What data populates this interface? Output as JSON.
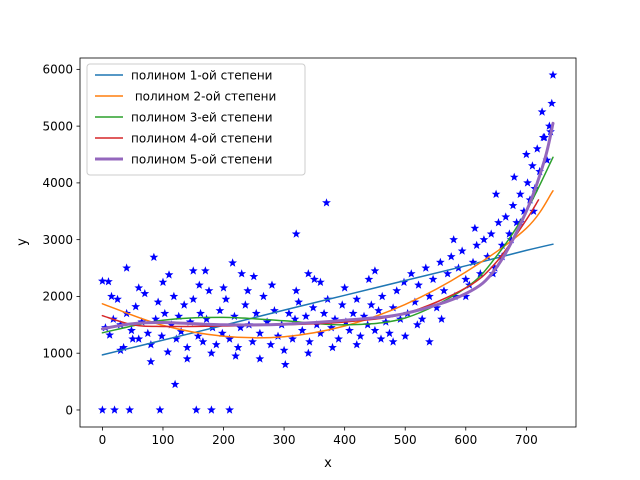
{
  "chart_data": {
    "type": "scatter",
    "xlabel": "x",
    "ylabel": "y",
    "xlim": [
      -37,
      782
    ],
    "ylim": [
      -300,
      6200
    ],
    "xticks": [
      0,
      100,
      200,
      300,
      400,
      500,
      600,
      700
    ],
    "yticks": [
      0,
      1000,
      2000,
      3000,
      4000,
      5000,
      6000
    ],
    "grid": false,
    "legend_position": "top-left",
    "scatter_color": "#0000ff",
    "scatter_marker": "star",
    "scatter_points": [
      [
        0,
        0
      ],
      [
        20,
        0
      ],
      [
        45,
        0
      ],
      [
        95,
        0
      ],
      [
        155,
        0
      ],
      [
        180,
        0
      ],
      [
        210,
        0
      ],
      [
        0,
        2270
      ],
      [
        10,
        2260
      ],
      [
        40,
        2500
      ],
      [
        85,
        2690
      ],
      [
        110,
        2380
      ],
      [
        170,
        2450
      ],
      [
        215,
        2590
      ],
      [
        340,
        2400
      ],
      [
        370,
        3650
      ],
      [
        320,
        3100
      ],
      [
        230,
        2400
      ],
      [
        5,
        1450
      ],
      [
        12,
        1320
      ],
      [
        18,
        1600
      ],
      [
        25,
        1950
      ],
      [
        30,
        1500
      ],
      [
        35,
        1100
      ],
      [
        40,
        1700
      ],
      [
        48,
        1400
      ],
      [
        55,
        1820
      ],
      [
        60,
        1250
      ],
      [
        65,
        1550
      ],
      [
        70,
        2050
      ],
      [
        75,
        1350
      ],
      [
        80,
        1150
      ],
      [
        88,
        1600
      ],
      [
        92,
        1900
      ],
      [
        98,
        1300
      ],
      [
        103,
        1700
      ],
      [
        108,
        1020
      ],
      [
        114,
        1500
      ],
      [
        118,
        2000
      ],
      [
        122,
        1250
      ],
      [
        126,
        1650
      ],
      [
        130,
        1380
      ],
      [
        135,
        1850
      ],
      [
        140,
        1100
      ],
      [
        145,
        1550
      ],
      [
        150,
        1950
      ],
      [
        158,
        1300
      ],
      [
        162,
        1700
      ],
      [
        166,
        1200
      ],
      [
        172,
        1600
      ],
      [
        176,
        2100
      ],
      [
        182,
        1450
      ],
      [
        188,
        1150
      ],
      [
        194,
        1750
      ],
      [
        198,
        1350
      ],
      [
        204,
        1950
      ],
      [
        210,
        1250
      ],
      [
        218,
        1650
      ],
      [
        224,
        1100
      ],
      [
        228,
        1450
      ],
      [
        236,
        1850
      ],
      [
        242,
        1500
      ],
      [
        248,
        1200
      ],
      [
        254,
        1700
      ],
      [
        260,
        1350
      ],
      [
        266,
        2000
      ],
      [
        272,
        1550
      ],
      [
        278,
        1150
      ],
      [
        284,
        1750
      ],
      [
        290,
        1300
      ],
      [
        296,
        1500
      ],
      [
        302,
        800
      ],
      [
        308,
        1700
      ],
      [
        314,
        1250
      ],
      [
        318,
        1600
      ],
      [
        324,
        1900
      ],
      [
        330,
        1400
      ],
      [
        336,
        1650
      ],
      [
        342,
        1200
      ],
      [
        348,
        1800
      ],
      [
        354,
        1500
      ],
      [
        360,
        1350
      ],
      [
        366,
        1700
      ],
      [
        372,
        1950
      ],
      [
        378,
        1450
      ],
      [
        384,
        1600
      ],
      [
        390,
        1250
      ],
      [
        396,
        1850
      ],
      [
        402,
        1550
      ],
      [
        408,
        1400
      ],
      [
        414,
        1700
      ],
      [
        420,
        1950
      ],
      [
        426,
        1300
      ],
      [
        432,
        1650
      ],
      [
        438,
        1500
      ],
      [
        444,
        1850
      ],
      [
        450,
        1400
      ],
      [
        456,
        1750
      ],
      [
        462,
        2000
      ],
      [
        468,
        1550
      ],
      [
        474,
        1350
      ],
      [
        480,
        1800
      ],
      [
        486,
        2100
      ],
      [
        492,
        1600
      ],
      [
        498,
        2250
      ],
      [
        504,
        1700
      ],
      [
        510,
        2400
      ],
      [
        516,
        1900
      ],
      [
        522,
        2200
      ],
      [
        528,
        1600
      ],
      [
        534,
        2500
      ],
      [
        540,
        2000
      ],
      [
        546,
        2300
      ],
      [
        552,
        1800
      ],
      [
        558,
        2600
      ],
      [
        564,
        2100
      ],
      [
        570,
        2400
      ],
      [
        576,
        2700
      ],
      [
        582,
        2000
      ],
      [
        588,
        2500
      ],
      [
        594,
        2800
      ],
      [
        600,
        2300
      ],
      [
        606,
        2200
      ],
      [
        612,
        2600
      ],
      [
        618,
        2900
      ],
      [
        624,
        2400
      ],
      [
        630,
        3000
      ],
      [
        636,
        2700
      ],
      [
        642,
        3100
      ],
      [
        648,
        2500
      ],
      [
        654,
        3300
      ],
      [
        660,
        2900
      ],
      [
        666,
        3400
      ],
      [
        672,
        3100
      ],
      [
        678,
        3600
      ],
      [
        684,
        3300
      ],
      [
        690,
        3800
      ],
      [
        696,
        3500
      ],
      [
        702,
        4000
      ],
      [
        706,
        3700
      ],
      [
        710,
        4300
      ],
      [
        714,
        3900
      ],
      [
        718,
        4600
      ],
      [
        722,
        4200
      ],
      [
        726,
        5250
      ],
      [
        730,
        4800
      ],
      [
        734,
        4400
      ],
      [
        738,
        5000
      ],
      [
        742,
        5400
      ],
      [
        744,
        5900
      ],
      [
        700,
        4500
      ],
      [
        712,
        3500
      ],
      [
        690,
        3300
      ],
      [
        680,
        4100
      ],
      [
        728,
        4800
      ],
      [
        740,
        4900
      ],
      [
        675,
        3000
      ],
      [
        660,
        2700
      ],
      [
        650,
        3800
      ],
      [
        645,
        2400
      ],
      [
        615,
        3200
      ],
      [
        600,
        2000
      ],
      [
        580,
        3000
      ],
      [
        560,
        1600
      ],
      [
        540,
        1200
      ],
      [
        520,
        1500
      ],
      [
        500,
        1300
      ],
      [
        480,
        1200
      ],
      [
        460,
        1250
      ],
      [
        440,
        2300
      ],
      [
        420,
        1150
      ],
      [
        400,
        2150
      ],
      [
        380,
        1100
      ],
      [
        360,
        2250
      ],
      [
        340,
        1000
      ],
      [
        320,
        2100
      ],
      [
        300,
        1050
      ],
      [
        280,
        2200
      ],
      [
        260,
        900
      ],
      [
        240,
        2100
      ],
      [
        220,
        950
      ],
      [
        200,
        2150
      ],
      [
        180,
        1000
      ],
      [
        160,
        2200
      ],
      [
        140,
        900
      ],
      [
        120,
        450
      ],
      [
        100,
        2250
      ],
      [
        80,
        850
      ],
      [
        60,
        2150
      ],
      [
        30,
        1050
      ],
      [
        15,
        2000
      ],
      [
        50,
        1250
      ],
      [
        150,
        2450
      ],
      [
        250,
        2350
      ],
      [
        350,
        2300
      ],
      [
        450,
        2450
      ]
    ],
    "series": [
      {
        "name": "полином 1-ой степени",
        "color": "#1f77b4",
        "width": 1.5,
        "x": [
          0,
          100,
          200,
          300,
          400,
          500,
          600,
          700,
          744
        ],
        "y": [
          970,
          1230,
          1490,
          1760,
          2020,
          2280,
          2540,
          2810,
          2920
        ]
      },
      {
        "name": " полином 2-ой степени",
        "color": "#ff7f0e",
        "width": 1.5,
        "x": [
          0,
          100,
          200,
          300,
          400,
          500,
          600,
          700,
          744
        ],
        "y": [
          1870,
          1490,
          1300,
          1290,
          1480,
          1860,
          2430,
          3200,
          3860
        ]
      },
      {
        "name": "полином 3-ей степени",
        "color": "#2ca02c",
        "width": 1.5,
        "x": [
          0,
          100,
          200,
          300,
          400,
          500,
          600,
          650,
          700,
          744
        ],
        "y": [
          1360,
          1580,
          1630,
          1570,
          1500,
          1620,
          2150,
          2700,
          3500,
          4450
        ]
      },
      {
        "name": "полином 4-ой степени",
        "color": "#d62728",
        "width": 1.5,
        "x": [
          0,
          50,
          100,
          200,
          300,
          400,
          500,
          600,
          650,
          700,
          720
        ],
        "y": [
          1660,
          1500,
          1470,
          1480,
          1500,
          1550,
          1700,
          2150,
          2600,
          3350,
          3700
        ]
      },
      {
        "name": "полином 5-ой степени",
        "color": "#9467bd",
        "width": 3,
        "x": [
          0,
          50,
          100,
          200,
          300,
          400,
          500,
          600,
          650,
          700,
          730,
          744
        ],
        "y": [
          1430,
          1520,
          1540,
          1500,
          1510,
          1580,
          1700,
          2050,
          2500,
          3500,
          4400,
          5050
        ]
      }
    ]
  }
}
